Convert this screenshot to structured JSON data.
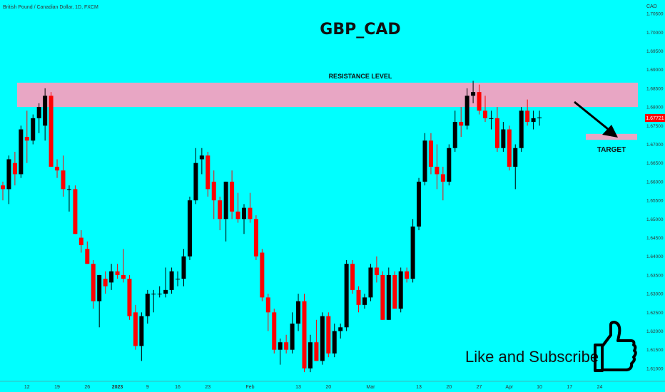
{
  "header": {
    "symbol_line": "British Pound / Canadian Dollar, 1D, FXCM"
  },
  "chart_data": {
    "type": "candlestick",
    "title": "GBP_CAD",
    "currency": "CAD",
    "price_label": "1.67721",
    "ylim": [
      1.6075,
      1.7075
    ],
    "y_ticks": [
      "1.70500",
      "1.70000",
      "1.69500",
      "1.69000",
      "1.68500",
      "1.68000",
      "1.67500",
      "1.67000",
      "1.66500",
      "1.66000",
      "1.65500",
      "1.65000",
      "1.64500",
      "1.64000",
      "1.63500",
      "1.63000",
      "1.62500",
      "1.62000",
      "1.61500",
      "1.61000"
    ],
    "x_ticks": [
      {
        "label": "12",
        "i": 4
      },
      {
        "label": "19",
        "i": 9
      },
      {
        "label": "26",
        "i": 14
      },
      {
        "label": "2023",
        "i": 19
      },
      {
        "label": "9",
        "i": 24
      },
      {
        "label": "16",
        "i": 29
      },
      {
        "label": "23",
        "i": 34
      },
      {
        "label": "Feb",
        "i": 41
      },
      {
        "label": "13",
        "i": 49
      },
      {
        "label": "20",
        "i": 54
      },
      {
        "label": "Mar",
        "i": 61
      },
      {
        "label": "13",
        "i": 69
      },
      {
        "label": "20",
        "i": 74
      },
      {
        "label": "27",
        "i": 79
      },
      {
        "label": "Apr",
        "i": 84
      },
      {
        "label": "10",
        "i": 89
      },
      {
        "label": "17",
        "i": 94
      },
      {
        "label": "24",
        "i": 99
      }
    ],
    "candles": [
      [
        1.659,
        1.66,
        1.655,
        1.658
      ],
      [
        1.658,
        1.667,
        1.654,
        1.666
      ],
      [
        1.665,
        1.668,
        1.659,
        1.662
      ],
      [
        1.662,
        1.675,
        1.661,
        1.674
      ],
      [
        1.672,
        1.679,
        1.665,
        1.671
      ],
      [
        1.671,
        1.678,
        1.67,
        1.677
      ],
      [
        1.677,
        1.681,
        1.673,
        1.68
      ],
      [
        1.675,
        1.685,
        1.671,
        1.683
      ],
      [
        1.683,
        1.684,
        1.664,
        1.664
      ],
      [
        1.664,
        1.666,
        1.661,
        1.663
      ],
      [
        1.663,
        1.667,
        1.656,
        1.658
      ],
      [
        1.658,
        1.659,
        1.652,
        1.658
      ],
      [
        1.658,
        1.659,
        1.646,
        1.646
      ],
      [
        1.645,
        1.647,
        1.641,
        1.643
      ],
      [
        1.642,
        1.644,
        1.638,
        1.638
      ],
      [
        1.638,
        1.639,
        1.626,
        1.628
      ],
      [
        1.628,
        1.635,
        1.621,
        1.635
      ],
      [
        1.634,
        1.636,
        1.63,
        1.632
      ],
      [
        1.633,
        1.638,
        1.631,
        1.636
      ],
      [
        1.636,
        1.638,
        1.634,
        1.635
      ],
      [
        1.635,
        1.642,
        1.633,
        1.634
      ],
      [
        1.634,
        1.635,
        1.623,
        1.624
      ],
      [
        1.625,
        1.627,
        1.615,
        1.616
      ],
      [
        1.616,
        1.625,
        1.612,
        1.624
      ],
      [
        1.624,
        1.631,
        1.622,
        1.63
      ],
      [
        1.63,
        1.631,
        1.625,
        1.63
      ],
      [
        1.63,
        1.632,
        1.629,
        1.63
      ],
      [
        1.63,
        1.637,
        1.629,
        1.631
      ],
      [
        1.631,
        1.637,
        1.63,
        1.636
      ],
      [
        1.634,
        1.636,
        1.632,
        1.634
      ],
      [
        1.634,
        1.642,
        1.632,
        1.64
      ],
      [
        1.64,
        1.656,
        1.639,
        1.655
      ],
      [
        1.655,
        1.669,
        1.654,
        1.665
      ],
      [
        1.666,
        1.669,
        1.662,
        1.667
      ],
      [
        1.667,
        1.668,
        1.656,
        1.658
      ],
      [
        1.66,
        1.663,
        1.65,
        1.655
      ],
      [
        1.655,
        1.656,
        1.647,
        1.65
      ],
      [
        1.65,
        1.66,
        1.644,
        1.66
      ],
      [
        1.66,
        1.663,
        1.65,
        1.652
      ],
      [
        1.652,
        1.657,
        1.649,
        1.65
      ],
      [
        1.65,
        1.654,
        1.646,
        1.653
      ],
      [
        1.653,
        1.657,
        1.649,
        1.65
      ],
      [
        1.65,
        1.651,
        1.639,
        1.64
      ],
      [
        1.641,
        1.642,
        1.628,
        1.629
      ],
      [
        1.629,
        1.63,
        1.62,
        1.625
      ],
      [
        1.625,
        1.626,
        1.614,
        1.615
      ],
      [
        1.615,
        1.618,
        1.611,
        1.617
      ],
      [
        1.617,
        1.619,
        1.614,
        1.615
      ],
      [
        1.615,
        1.625,
        1.614,
        1.622
      ],
      [
        1.622,
        1.63,
        1.62,
        1.628
      ],
      [
        1.628,
        1.63,
        1.609,
        1.61
      ],
      [
        1.61,
        1.619,
        1.609,
        1.617
      ],
      [
        1.617,
        1.623,
        1.612,
        1.612
      ],
      [
        1.612,
        1.625,
        1.611,
        1.624
      ],
      [
        1.624,
        1.625,
        1.613,
        1.614
      ],
      [
        1.614,
        1.622,
        1.613,
        1.62
      ],
      [
        1.62,
        1.622,
        1.618,
        1.621
      ],
      [
        1.621,
        1.639,
        1.62,
        1.638
      ],
      [
        1.638,
        1.639,
        1.63,
        1.631
      ],
      [
        1.631,
        1.632,
        1.625,
        1.627
      ],
      [
        1.627,
        1.63,
        1.626,
        1.629
      ],
      [
        1.629,
        1.638,
        1.628,
        1.637
      ],
      [
        1.637,
        1.64,
        1.633,
        1.635
      ],
      [
        1.635,
        1.636,
        1.623,
        1.623
      ],
      [
        1.623,
        1.637,
        1.623,
        1.635
      ],
      [
        1.635,
        1.636,
        1.626,
        1.626
      ],
      [
        1.626,
        1.637,
        1.625,
        1.636
      ],
      [
        1.636,
        1.637,
        1.633,
        1.634
      ],
      [
        1.634,
        1.65,
        1.633,
        1.648
      ],
      [
        1.648,
        1.661,
        1.647,
        1.66
      ],
      [
        1.66,
        1.673,
        1.659,
        1.671
      ],
      [
        1.671,
        1.673,
        1.662,
        1.664
      ],
      [
        1.664,
        1.67,
        1.658,
        1.662
      ],
      [
        1.662,
        1.664,
        1.655,
        1.66
      ],
      [
        1.66,
        1.67,
        1.659,
        1.669
      ],
      [
        1.669,
        1.679,
        1.668,
        1.676
      ],
      [
        1.676,
        1.68,
        1.672,
        1.675
      ],
      [
        1.675,
        1.685,
        1.674,
        1.683
      ],
      [
        1.683,
        1.687,
        1.681,
        1.684
      ],
      [
        1.684,
        1.686,
        1.678,
        1.679
      ],
      [
        1.679,
        1.683,
        1.676,
        1.677
      ],
      [
        1.677,
        1.679,
        1.674,
        1.677
      ],
      [
        1.677,
        1.68,
        1.668,
        1.669
      ],
      [
        1.669,
        1.676,
        1.668,
        1.674
      ],
      [
        1.674,
        1.675,
        1.663,
        1.664
      ],
      [
        1.664,
        1.67,
        1.658,
        1.669
      ],
      [
        1.669,
        1.68,
        1.668,
        1.679
      ],
      [
        1.679,
        1.682,
        1.675,
        1.676
      ],
      [
        1.676,
        1.679,
        1.674,
        1.677
      ],
      [
        1.677,
        1.679,
        1.675,
        1.6772
      ]
    ],
    "annotations": {
      "resistance_label": "RESISTANCE LEVEL",
      "resistance_zone": [
        1.68,
        1.6865
      ],
      "target_label": "TARGET",
      "target_zone": [
        1.6712,
        1.6728
      ],
      "cta_text": "Like and Subscribe"
    }
  },
  "colors": {
    "background": "#00ffff",
    "bull": "#000000",
    "bear": "#ff0000",
    "resistance": "#e8a6c4",
    "target": "#e8a6c4",
    "price_tag": "#ff0000"
  },
  "icons": {
    "thumb": "thumbs-up-icon"
  }
}
